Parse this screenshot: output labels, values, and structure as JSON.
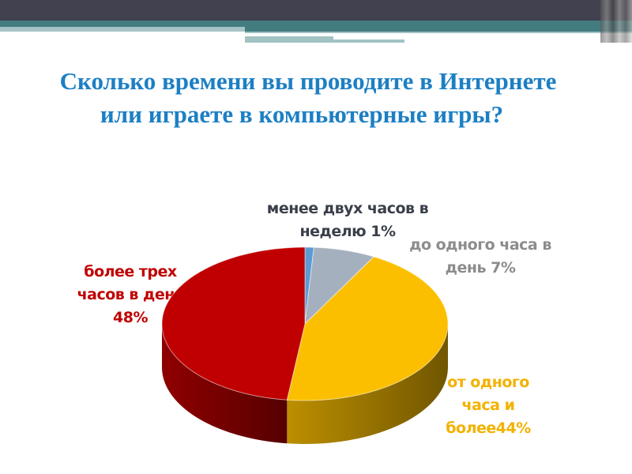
{
  "slide": {
    "title_line1": "Сколько времени вы проводите в Интернете",
    "title_line2": "или играете в компьютерные игры?"
  },
  "chart_data": {
    "type": "pie",
    "style": "3d",
    "title": "",
    "legend": "none",
    "slices": [
      {
        "label_line1": "менее двух часов в",
        "label_line2": "неделю 1%",
        "value": 1,
        "color": "#5b9bd5",
        "label_color": "#3a3f4a"
      },
      {
        "label_line1": "до одного часа в",
        "label_line2": "день 7%",
        "value": 7,
        "color": "#a5b0be",
        "label_color": "#8c8c8c"
      },
      {
        "label_line1": "от одного",
        "label_line2": "часа и",
        "label_line3": "более44%",
        "value": 44,
        "color": "#fbbf00",
        "label_color": "#f2b200"
      },
      {
        "label_line1": "более трех",
        "label_line2": "часов в день",
        "label_line3": "48%",
        "value": 48,
        "color": "#c00000",
        "label_color": "#c00000"
      }
    ]
  }
}
